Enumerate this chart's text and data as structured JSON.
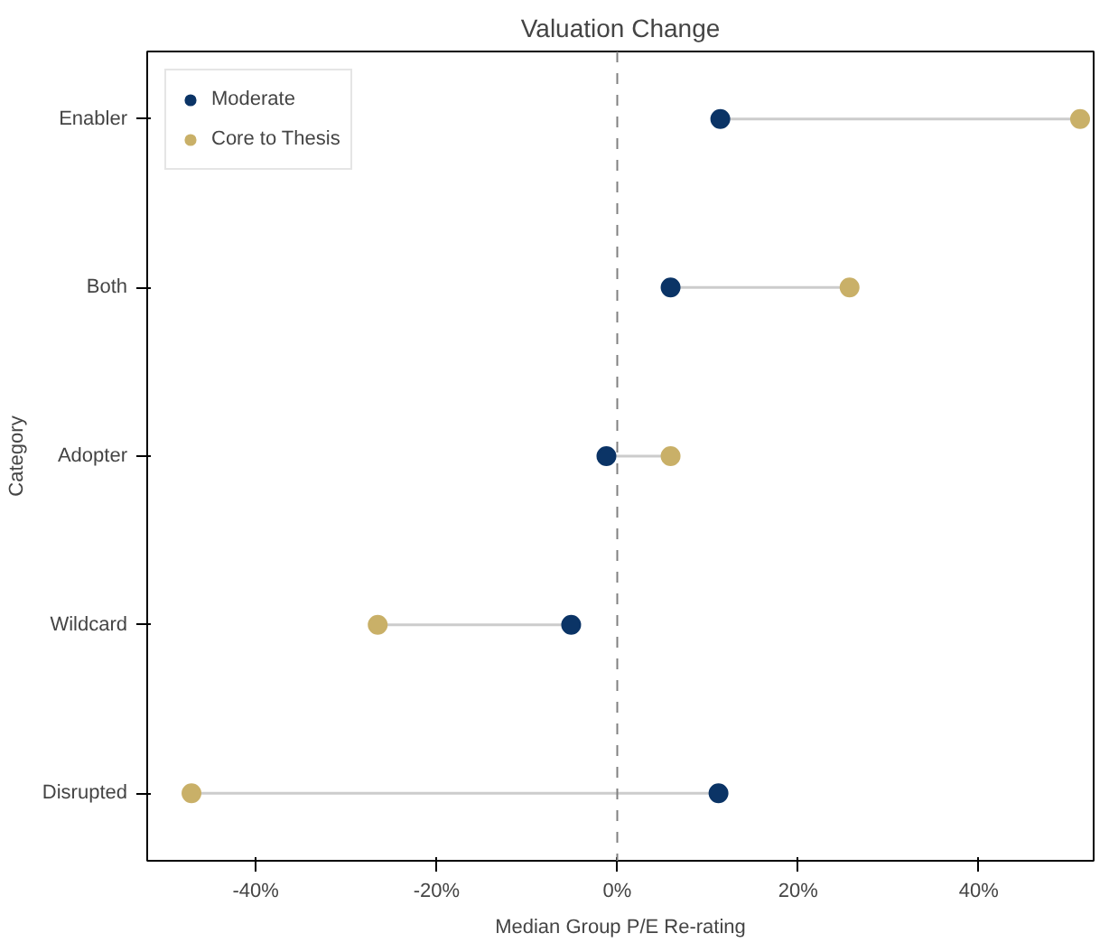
{
  "chart_data": {
    "type": "scatter",
    "orientation": "horizontal",
    "title": "Valuation Change",
    "xlabel": "Median Group P/E Re-rating",
    "ylabel": "Category",
    "categories": [
      "Enabler",
      "Both",
      "Adopter",
      "Wildcard",
      "Disrupted"
    ],
    "series": [
      {
        "name": "Moderate",
        "color": "#0b3466",
        "values": [
          11.4,
          5.9,
          -1.2,
          -5.1,
          11.2
        ]
      },
      {
        "name": "Core to Thesis",
        "color": "#c9b068",
        "values": [
          51.2,
          25.7,
          5.9,
          -26.5,
          -47.1
        ]
      }
    ],
    "xlim": [
      -52,
      52.7
    ],
    "xticks": [
      {
        "value": -40,
        "label": "-40%"
      },
      {
        "value": -20,
        "label": "-20%"
      },
      {
        "value": 0,
        "label": "0%"
      },
      {
        "value": 20,
        "label": "20%"
      },
      {
        "value": 40,
        "label": "40%"
      }
    ],
    "ref_lines": [
      {
        "axis": "x",
        "value": 0,
        "label": null,
        "color": "#808080",
        "line_style": "dashed"
      }
    ],
    "legend": "top left",
    "grid": false,
    "marker": "circle"
  }
}
